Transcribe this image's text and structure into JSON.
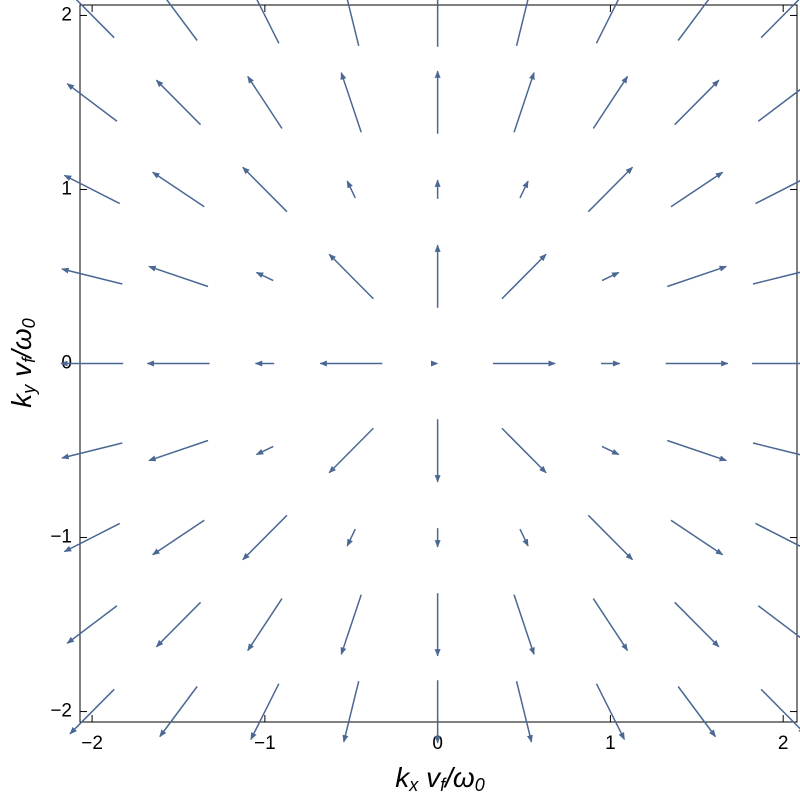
{
  "chart_data": {
    "type": "vector",
    "xlabel": [
      "k",
      "x",
      " v",
      "f",
      "/ω",
      "0"
    ],
    "ylabel": [
      "k",
      "y",
      " v",
      "f",
      "/ω",
      "0"
    ],
    "color": "#4a6893",
    "xlim": [
      -2.07,
      2.08
    ],
    "ylim": [
      -2.06,
      2.06
    ],
    "xticks": [
      {
        "value": -2,
        "label": "−2"
      },
      {
        "value": -1,
        "label": "−1"
      },
      0,
      1,
      2
    ],
    "yticks": [
      {
        "value": -2,
        "label": "−2"
      },
      {
        "value": -1,
        "label": "−1"
      },
      0,
      1,
      2
    ],
    "x": [
      -2,
      -1.5,
      -1,
      -0.5,
      0,
      0.5,
      1,
      1.5,
      2
    ],
    "y": [
      -2,
      -1.5,
      -1,
      -0.5,
      0,
      0.5,
      1,
      1.5,
      2
    ],
    "u": [
      [
        -0.71,
        -0.6,
        -0.45,
        -0.24,
        0,
        0.24,
        0.45,
        0.6,
        0.71
      ],
      [
        -0.8,
        -0.71,
        -0.55,
        -0.32,
        0,
        0.32,
        0.55,
        0.71,
        0.8
      ],
      [
        -0.89,
        -0.83,
        -0.71,
        -0.13,
        0,
        0.13,
        0.71,
        0.83,
        0.89
      ],
      [
        -0.97,
        -0.95,
        -0.27,
        -0.71,
        0,
        0.71,
        0.27,
        0.95,
        0.97
      ],
      [
        -1,
        -1,
        -0.3,
        -1,
        0,
        1,
        0.3,
        1,
        1
      ],
      [
        -0.97,
        -0.95,
        -0.27,
        -0.71,
        0,
        0.71,
        0.27,
        0.95,
        0.97
      ],
      [
        -0.89,
        -0.83,
        -0.71,
        -0.13,
        0,
        0.13,
        0.71,
        0.83,
        0.89
      ],
      [
        -0.8,
        -0.71,
        -0.55,
        -0.32,
        0,
        0.32,
        0.55,
        0.71,
        0.8
      ],
      [
        -0.71,
        -0.6,
        -0.45,
        -0.24,
        0,
        0.24,
        0.45,
        0.6,
        0.71
      ]
    ],
    "v": [
      [
        -0.71,
        -0.8,
        -0.89,
        -0.97,
        -1,
        -0.97,
        -0.89,
        -0.8,
        -0.71
      ],
      [
        -0.6,
        -0.71,
        -0.83,
        -0.95,
        -1,
        -0.95,
        -0.83,
        -0.71,
        -0.6
      ],
      [
        -0.45,
        -0.55,
        -0.71,
        -0.27,
        -0.3,
        -0.27,
        -0.71,
        -0.55,
        -0.45
      ],
      [
        -0.24,
        -0.32,
        -0.13,
        -0.71,
        -1,
        -0.71,
        -0.13,
        -0.32,
        -0.24
      ],
      [
        0,
        0,
        0,
        0,
        0,
        0,
        0,
        0,
        0
      ],
      [
        0.24,
        0.32,
        0.13,
        0.71,
        1,
        0.71,
        0.13,
        0.32,
        0.24
      ],
      [
        0.45,
        0.55,
        0.71,
        0.27,
        0.3,
        0.27,
        0.71,
        0.55,
        0.45
      ],
      [
        0.6,
        0.71,
        0.83,
        0.95,
        1,
        0.95,
        0.83,
        0.71,
        0.6
      ],
      [
        0.71,
        0.8,
        0.89,
        0.97,
        1,
        0.97,
        0.89,
        0.8,
        0.71
      ]
    ]
  }
}
